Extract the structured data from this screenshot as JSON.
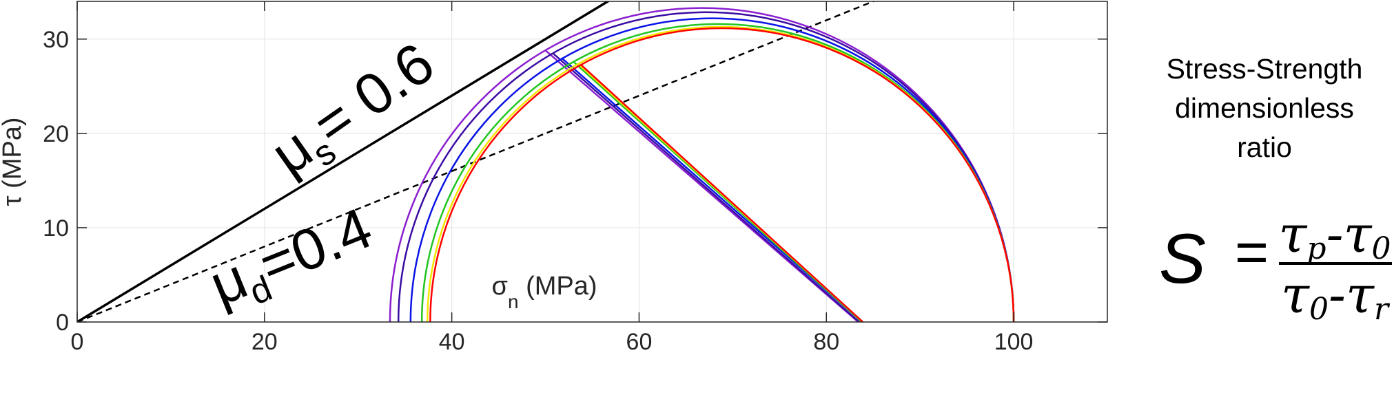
{
  "chart_data": {
    "type": "line",
    "xlabel_main": "σ",
    "xlabel_sub": "n",
    "xlabel_units": " (MPa)",
    "ylabel": "τ (MPa)",
    "xlim": [
      0,
      110
    ],
    "ylim": [
      0,
      34
    ],
    "x_ticks": [
      0,
      20,
      40,
      60,
      80,
      100
    ],
    "y_ticks": [
      0,
      10,
      20,
      30
    ],
    "grid": true,
    "friction_lines": [
      {
        "name": "static",
        "mu": 0.6,
        "style": "solid",
        "color": "#000000",
        "label_sym": "μ",
        "label_sub": "s",
        "label_val": "= 0.6"
      },
      {
        "name": "dynamic",
        "mu": 0.4,
        "style": "dashed",
        "color": "#000000",
        "label_sym": "μ",
        "label_sub": "d",
        "label_val": "=0.4"
      }
    ],
    "sigma1": 100,
    "circles": [
      {
        "color": "#8B1FCF",
        "sigma3": 33.4,
        "tangent_x": 50.0
      },
      {
        "color": "#3A0CA3",
        "sigma3": 34.3,
        "tangent_x": 50.8
      },
      {
        "color": "#0A14E6",
        "sigma3": 35.6,
        "tangent_x": 51.8
      },
      {
        "color": "#21C521",
        "sigma3": 36.8,
        "tangent_x": 53.0
      },
      {
        "color": "#F2E600",
        "sigma3": 37.4,
        "tangent_x": 53.5
      },
      {
        "color": "#FF0000",
        "sigma3": 37.7,
        "tangent_x": 53.8
      }
    ]
  },
  "annotation": {
    "title_lines": [
      "Stress-Strength",
      "dimensionless",
      "ratio"
    ],
    "formula_lhs": "S",
    "formula_eq": "=",
    "num_a": "τ",
    "num_a_sub": "p",
    "num_op": "-",
    "num_b": "τ",
    "num_b_sub": "0",
    "den_a": "τ",
    "den_a_sub": "0",
    "den_op": "-",
    "den_b": "τ",
    "den_b_sub": "r"
  }
}
